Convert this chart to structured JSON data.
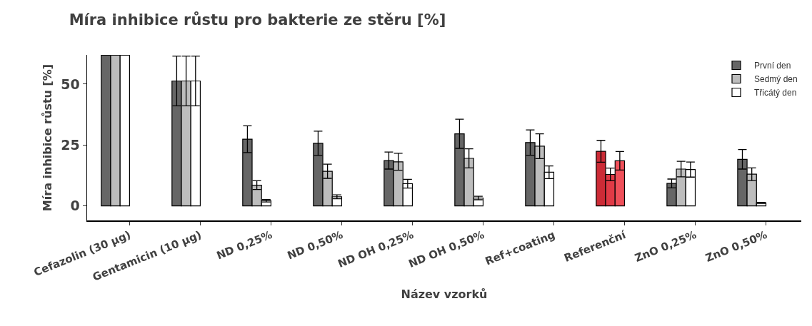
{
  "chart_data": {
    "type": "bar",
    "title": "Míra inhibice růstu pro bakterie ze stěru [%]",
    "xlabel": "Název vzorků",
    "ylabel": "Míra inhibice růstu [%]",
    "categories": [
      "Cefazolin (30 µg)",
      "Gentamicin (10 µg)",
      "ND 0,25%",
      "ND 0,50%",
      "ND OH 0,25%",
      "ND OH 0,50%",
      "Ref+coating",
      "Referenční",
      "ZnO 0,25%",
      "ZnO 0,50%"
    ],
    "series": [
      {
        "name": "První den",
        "color": "#666666",
        "colors": [
          "#666666",
          "#666666",
          "#666666",
          "#666666",
          "#666666",
          "#666666",
          "#666666",
          "#cc2b36",
          "#666666",
          "#666666"
        ],
        "values": [
          62,
          51.3,
          27.4,
          25.7,
          18.6,
          29.6,
          26.0,
          22.4,
          9.2,
          19.1
        ],
        "errors": [
          null,
          10.2,
          5.5,
          5,
          3.5,
          6,
          5.2,
          4.5,
          1.8,
          4
        ]
      },
      {
        "name": "Sedmý den",
        "color": "#bdbdbd",
        "colors": [
          "#bdbdbd",
          "#bdbdbd",
          "#bdbdbd",
          "#bdbdbd",
          "#bdbdbd",
          "#bdbdbd",
          "#bdbdbd",
          "#e03a46",
          "#bdbdbd",
          "#bdbdbd"
        ],
        "values": [
          62,
          51.3,
          8.5,
          14.2,
          18.1,
          19.5,
          24.5,
          12.9,
          15.1,
          13.0
        ],
        "errors": [
          null,
          10.2,
          1.8,
          2.9,
          3.5,
          3.9,
          5.1,
          2.6,
          3.2,
          2.6
        ]
      },
      {
        "name": "Třicátý den",
        "color": "#ffffff",
        "colors": [
          "#ffffff",
          "#ffffff",
          "#ffffff",
          "#ffffff",
          "#ffffff",
          "#ffffff",
          "#ffffff",
          "#ef505a",
          "#ffffff",
          "#ffffff"
        ],
        "values": [
          62,
          51.3,
          2.1,
          3.7,
          9.1,
          3.2,
          13.8,
          18.5,
          14.9,
          1.2
        ],
        "errors": [
          null,
          10.2,
          0.5,
          0.8,
          1.8,
          0.7,
          2.6,
          3.8,
          3.1,
          0.2
        ]
      }
    ],
    "ylim": [
      -6,
      62
    ],
    "yticks": [
      0,
      25,
      50
    ],
    "grid": false,
    "legend": "top right"
  }
}
